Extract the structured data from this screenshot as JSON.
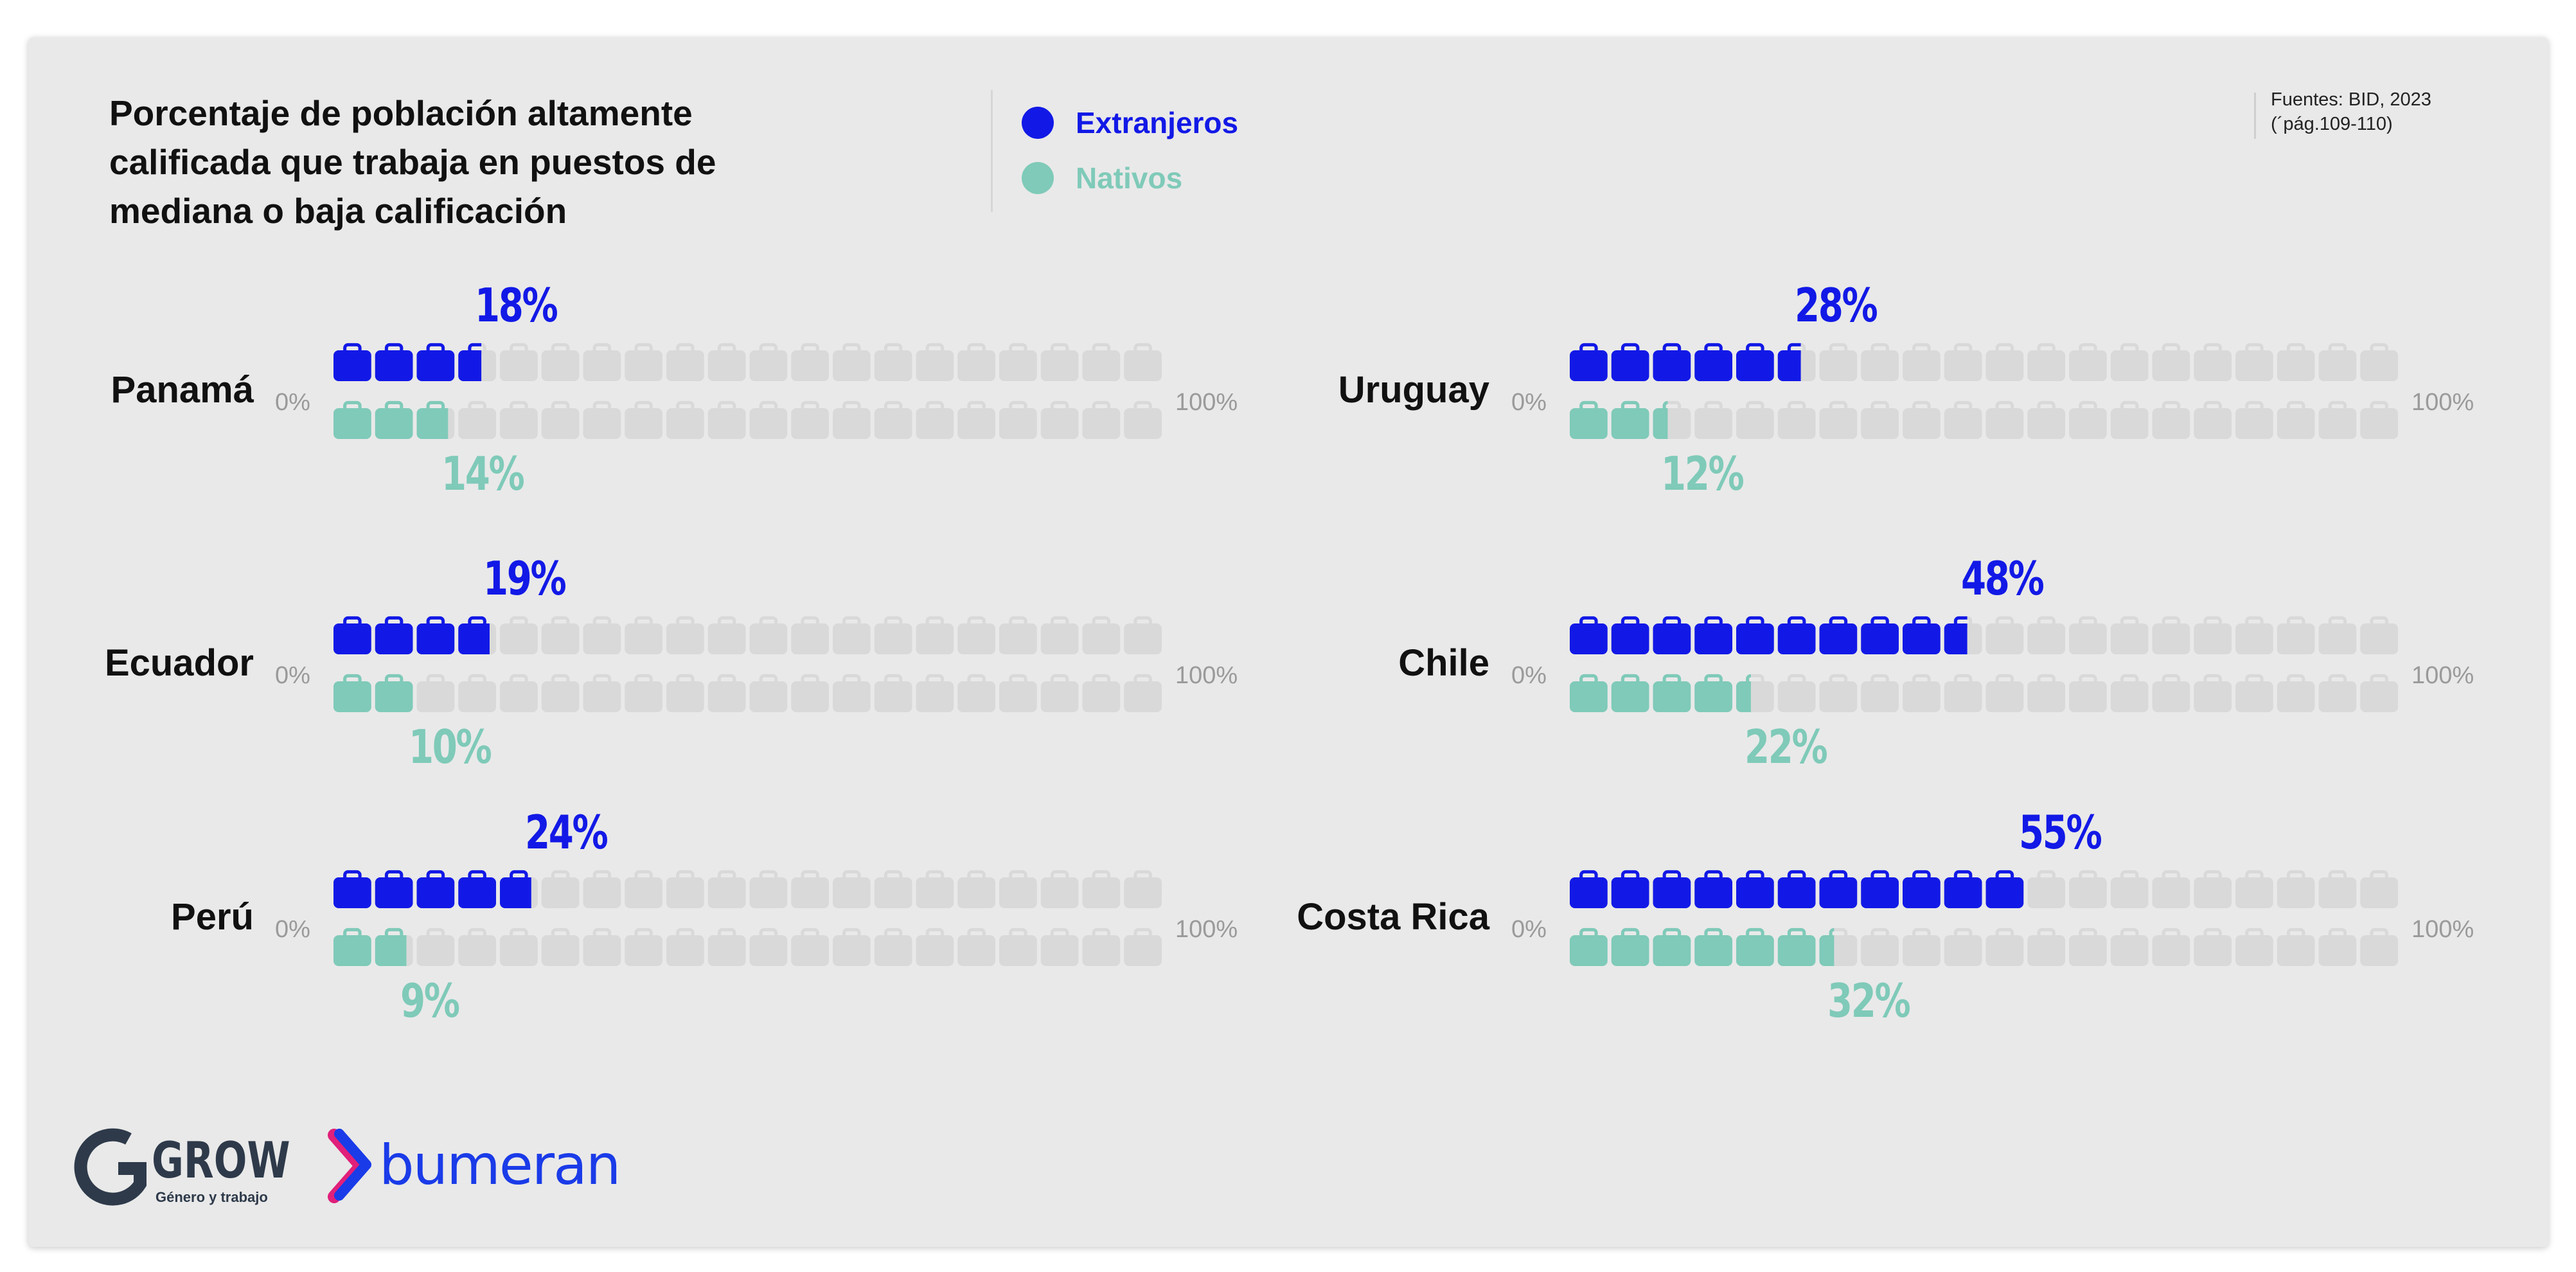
{
  "title": "Porcentaje de población altamente calificada que trabaja en puestos de mediana o baja calificación",
  "legend": [
    {
      "label": "Extranjeros",
      "color": "#1219e6"
    },
    {
      "label": "Nativos",
      "color": "#7fcab9"
    }
  ],
  "source": "Fuentes: BID, 2023\n(´pág.109-110)",
  "axis": {
    "min_label": "0%",
    "max_label": "100%"
  },
  "colors": {
    "foreign": "#1219e6",
    "native": "#7fcab9",
    "empty": "#d9d9d9"
  },
  "chart_data": {
    "type": "bar",
    "title": "Porcentaje de población altamente calificada que trabaja en puestos de mediana o baja calificación",
    "categories": [
      "Panamá",
      "Uruguay",
      "Ecuador",
      "Chile",
      "Perú",
      "Costa Rica"
    ],
    "series": [
      {
        "name": "Extranjeros",
        "values": [
          18,
          28,
          19,
          48,
          24,
          55
        ],
        "labels": [
          "18%",
          "28%",
          "19%",
          "48%",
          "24%",
          "55%"
        ]
      },
      {
        "name": "Nativos",
        "values": [
          14,
          12,
          10,
          22,
          9,
          32
        ],
        "labels": [
          "14%",
          "12%",
          "10%",
          "22%",
          "9%",
          "32%"
        ]
      }
    ],
    "ylim": [
      0,
      100
    ],
    "unit": "%",
    "icon": "briefcase-icon"
  },
  "logos": {
    "grow": "GROW",
    "grow_tagline": "Género y trabajo",
    "bumeran": "bumeran"
  }
}
